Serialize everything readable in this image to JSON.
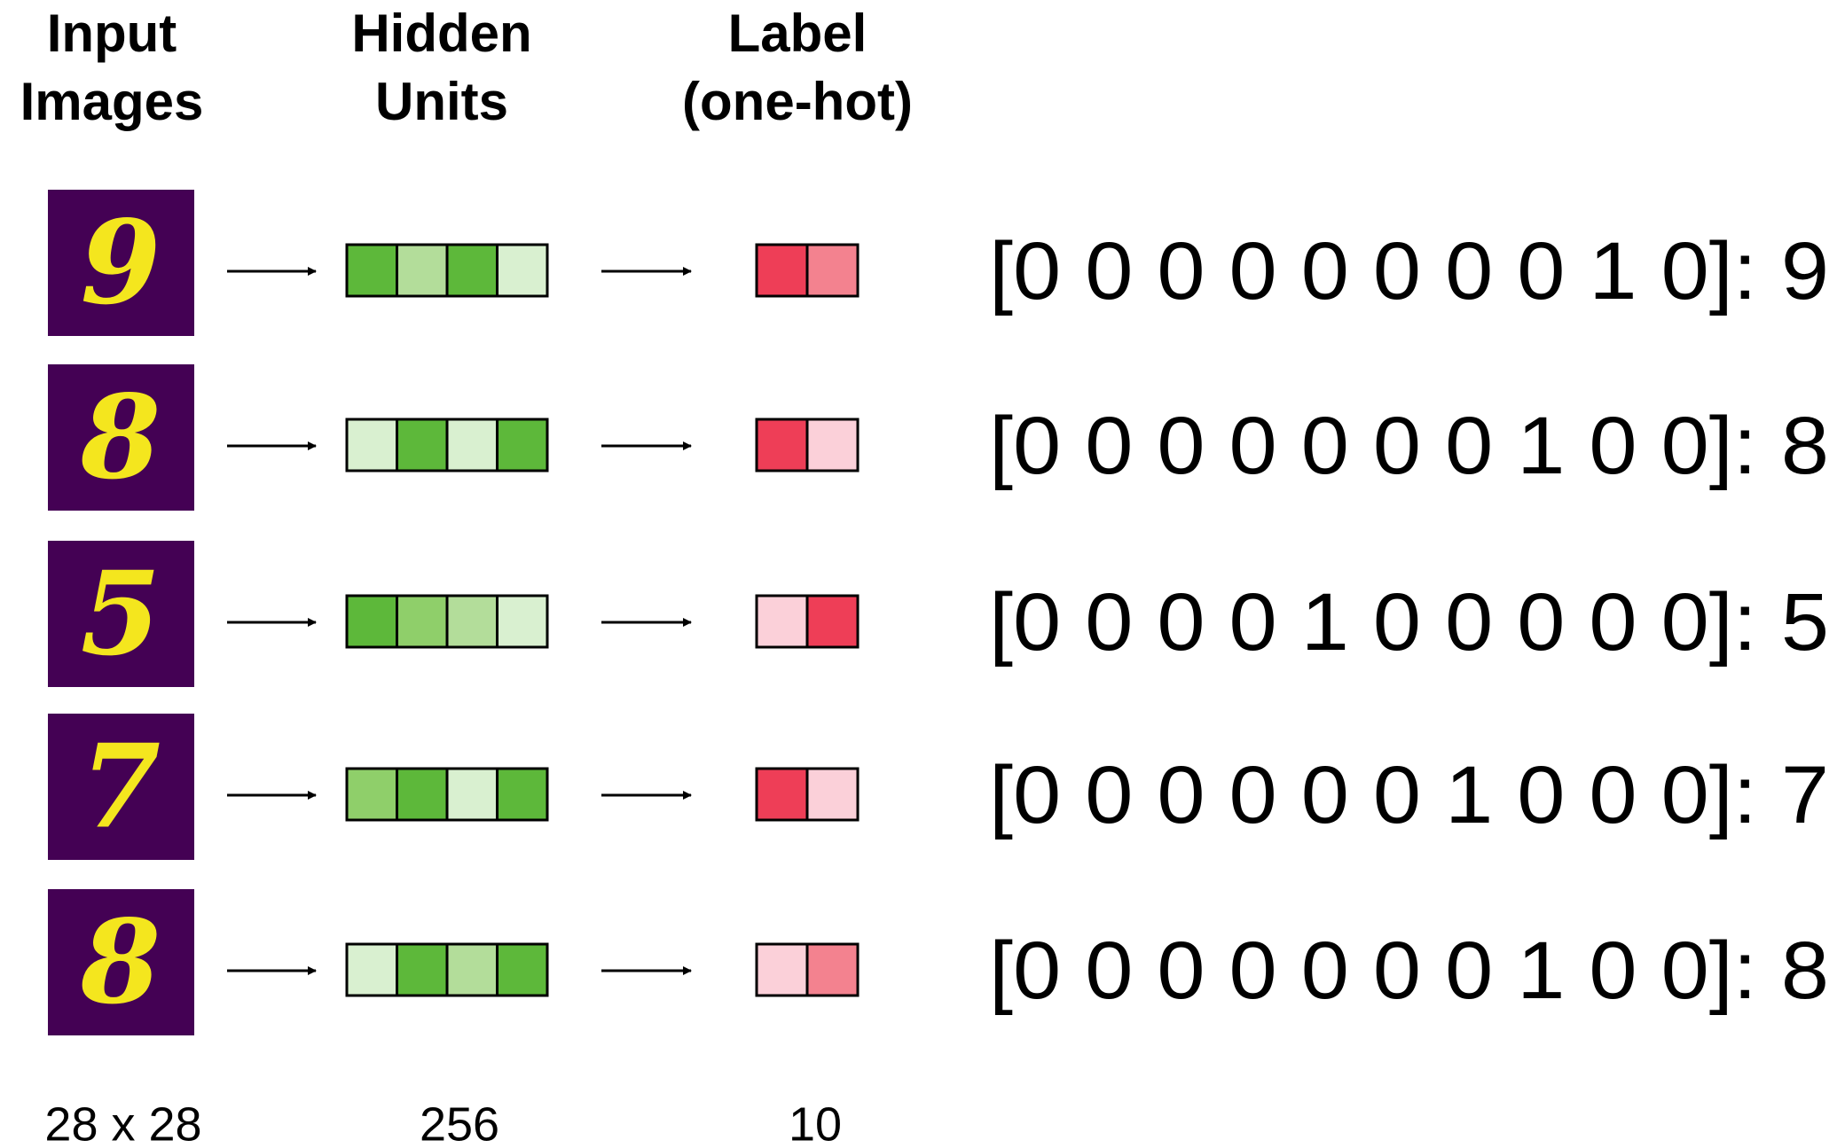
{
  "headers": [
    [
      "Input",
      "Images"
    ],
    [
      "Hidden",
      "Units"
    ],
    [
      "Label",
      "(one-hot)"
    ]
  ],
  "rows": [
    {
      "digit": "9",
      "hidden_colors": [
        "#5db83a",
        "#b3dd9a",
        "#5db83a",
        "#d9f0d0"
      ],
      "label_colors": [
        "#ee3e57",
        "#f3828f"
      ],
      "label_text": "[0 0 0 0 0 0 0 0 1 0]: 9"
    },
    {
      "digit": "8",
      "hidden_colors": [
        "#d9f0d0",
        "#5db83a",
        "#d9f0d0",
        "#5db83a"
      ],
      "label_colors": [
        "#ee3e57",
        "#fbd0d9"
      ],
      "label_text": "[0 0 0 0 0 0 0 1 0 0]: 8"
    },
    {
      "digit": "5",
      "hidden_colors": [
        "#5db83a",
        "#8fcf6a",
        "#b3dd9a",
        "#d9f0d0"
      ],
      "label_colors": [
        "#fbd0d9",
        "#ee3e57"
      ],
      "label_text": "[0 0 0 0 1 0 0 0 0 0]: 5"
    },
    {
      "digit": "7",
      "hidden_colors": [
        "#8fcf6a",
        "#5db83a",
        "#d9f0d0",
        "#5db83a"
      ],
      "label_colors": [
        "#ee3e57",
        "#fbd0d9"
      ],
      "label_text": "[0 0 0 0 0 0 1 0 0 0]: 7"
    },
    {
      "digit": "8",
      "hidden_colors": [
        "#d9f0d0",
        "#5db83a",
        "#b3dd9a",
        "#5db83a"
      ],
      "label_colors": [
        "#fbd0d9",
        "#f3828f"
      ],
      "label_text": "[0 0 0 0 0 0 0 1 0 0]: 8"
    }
  ],
  "dims": [
    "28 x 28",
    "256",
    "10"
  ]
}
